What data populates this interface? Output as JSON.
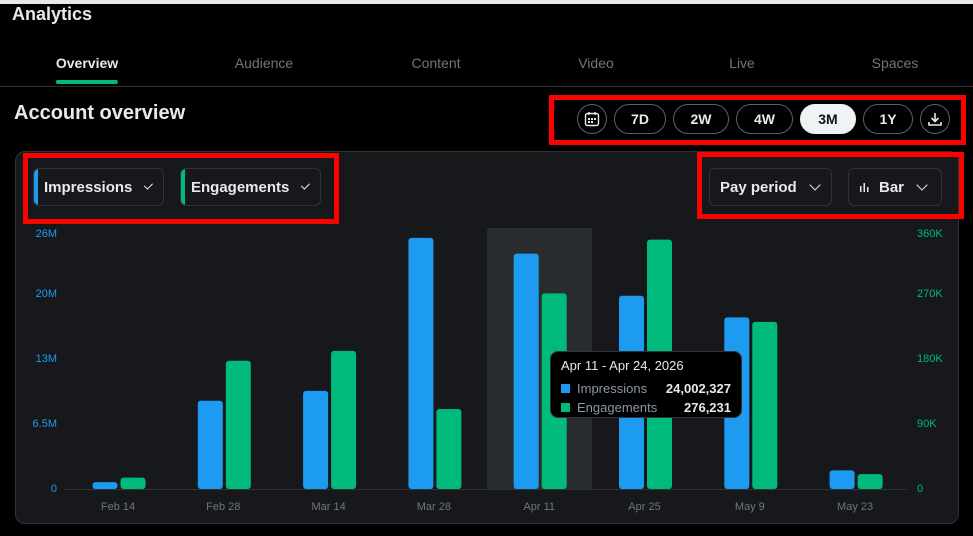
{
  "app": {
    "title": "Analytics"
  },
  "tabs": [
    {
      "label": "Overview",
      "active": true
    },
    {
      "label": "Audience"
    },
    {
      "label": "Content"
    },
    {
      "label": "Video"
    },
    {
      "label": "Live"
    },
    {
      "label": "Spaces"
    }
  ],
  "section": {
    "title": "Account overview"
  },
  "range": {
    "options": [
      "7D",
      "2W",
      "4W",
      "3M",
      "1Y"
    ],
    "selected": "3M",
    "calendar_icon": "calendar-icon",
    "download_icon": "download-icon"
  },
  "controls": {
    "metric1": "Impressions",
    "metric2": "Engagements",
    "period": "Pay period",
    "chart_type": "Bar"
  },
  "colors": {
    "impressions": "#1d9bf0",
    "engagements": "#00ba7c",
    "highlight": "#ff0000"
  },
  "chart_data": {
    "type": "bar",
    "categories": [
      "Feb 14",
      "Feb 28",
      "Mar 14",
      "Mar 28",
      "Apr 11",
      "Apr 25",
      "May 9",
      "May 23"
    ],
    "series": [
      {
        "name": "Impressions",
        "axis": "left",
        "values": [
          700000,
          9000000,
          10000000,
          25600000,
          24002327,
          19700000,
          17500000,
          1900000
        ]
      },
      {
        "name": "Engagements",
        "axis": "right",
        "values": [
          16000,
          181000,
          195000,
          113000,
          276231,
          352000,
          236000,
          21000
        ]
      }
    ],
    "y_left": {
      "ticks": [
        "0",
        "6.5M",
        "13M",
        "20M",
        "26M"
      ],
      "ylim": [
        0,
        26000000
      ]
    },
    "y_right": {
      "ticks": [
        "0",
        "90K",
        "180K",
        "270K",
        "360K"
      ],
      "ylim": [
        0,
        360000
      ]
    },
    "highlighted_category": "Apr 11",
    "tooltip": {
      "title": "Apr 11 - Apr 24, 2026",
      "rows": [
        {
          "label": "Impressions",
          "value": "24,002,327"
        },
        {
          "label": "Engagements",
          "value": "276,231"
        }
      ]
    }
  }
}
